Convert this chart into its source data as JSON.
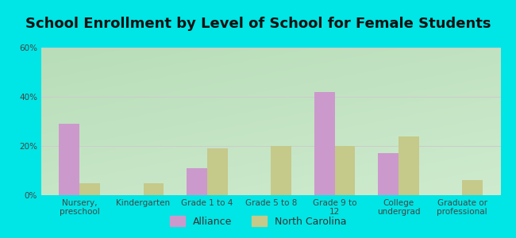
{
  "title": "School Enrollment by Level of School for Female Students",
  "categories": [
    "Nursery,\npreschool",
    "Kindergarten",
    "Grade 1 to 4",
    "Grade 5 to 8",
    "Grade 9 to\n12",
    "College\nundergrad",
    "Graduate or\nprofessional"
  ],
  "alliance_values": [
    29,
    0,
    11,
    0,
    42,
    17,
    0
  ],
  "nc_values": [
    5,
    5,
    19,
    20,
    20,
    24,
    6
  ],
  "alliance_color": "#cc99cc",
  "nc_color": "#c5c98a",
  "background_outer": "#00e5e5",
  "background_plot_tl": "#b8ddb8",
  "background_plot_br": "#f0fff0",
  "title_fontsize": 13,
  "tick_fontsize": 7.5,
  "legend_fontsize": 9,
  "ylim": [
    0,
    60
  ],
  "yticks": [
    0,
    20,
    40,
    60
  ],
  "ytick_labels": [
    "0%",
    "20%",
    "40%",
    "60%"
  ],
  "bar_width": 0.32,
  "grid_color": "#cccccc"
}
